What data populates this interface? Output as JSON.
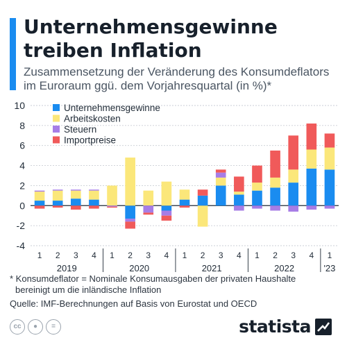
{
  "header": {
    "title": "Unternehmensgewinne treiben Inflation",
    "subtitle": "Zusammensetzung der Veränderung des Konsumdeflators im Euroraum ggü. dem Vorjahresquartal (in %)*"
  },
  "footer": {
    "footnote_line1": "* Konsumdeflator = Nominale Konsumausgaben der privaten Haushalte",
    "footnote_line2": "bereinigt um die inländische Inflation",
    "source": "Quelle: IMF-Berechnungen auf Basis von Eurostat und OECD",
    "logo_text": "statista",
    "license_icons": [
      "cc-icon",
      "person-icon",
      "equals-icon"
    ]
  },
  "colors": {
    "accent": "#1a8cf0",
    "unternehmensgewinne": "#1a8cf0",
    "arbeitskosten": "#fbe77a",
    "steuern": "#a77de6",
    "importpreise": "#f05a5a"
  },
  "chart_data": {
    "type": "bar",
    "stacked": true,
    "categories": [
      "1",
      "2",
      "3",
      "4",
      "1",
      "2",
      "3",
      "4",
      "1",
      "2",
      "3",
      "4",
      "1",
      "2",
      "3",
      "4",
      "1"
    ],
    "year_groups": [
      {
        "label": "2019",
        "start": 0,
        "end": 3
      },
      {
        "label": "2020",
        "start": 4,
        "end": 7
      },
      {
        "label": "2021",
        "start": 8,
        "end": 11
      },
      {
        "label": "2022",
        "start": 12,
        "end": 15
      },
      {
        "label": "'23",
        "start": 16,
        "end": 16
      }
    ],
    "series": [
      {
        "name": "Unternehmensgewinne",
        "values": [
          0.5,
          0.5,
          0.7,
          0.6,
          0.0,
          -1.3,
          0.0,
          -0.5,
          0.6,
          1.0,
          2.0,
          1.1,
          1.5,
          1.8,
          2.3,
          3.7,
          3.6
        ]
      },
      {
        "name": "Arbeitskosten",
        "values": [
          0.9,
          1.0,
          0.8,
          0.9,
          2.0,
          4.8,
          1.5,
          2.4,
          1.0,
          -2.1,
          0.8,
          0.3,
          0.8,
          1.0,
          1.3,
          1.9,
          2.2
        ]
      },
      {
        "name": "Steuern",
        "values": [
          0.1,
          0.1,
          0.1,
          0.1,
          -0.1,
          -0.3,
          -0.7,
          -0.5,
          0.0,
          0.0,
          0.5,
          -0.5,
          -0.3,
          -0.5,
          -0.6,
          -0.4,
          -0.3
        ]
      },
      {
        "name": "Importpreise",
        "values": [
          -0.3,
          -0.2,
          -0.4,
          -0.3,
          -0.1,
          -0.7,
          -0.2,
          -0.5,
          -0.2,
          0.6,
          0.3,
          1.5,
          1.7,
          2.7,
          3.4,
          2.6,
          1.4
        ]
      }
    ],
    "ylim": [
      -4,
      10
    ],
    "yticks": [
      -4,
      -2,
      0,
      2,
      4,
      6,
      8,
      10
    ],
    "grid": true,
    "legend_position": "top-left"
  }
}
